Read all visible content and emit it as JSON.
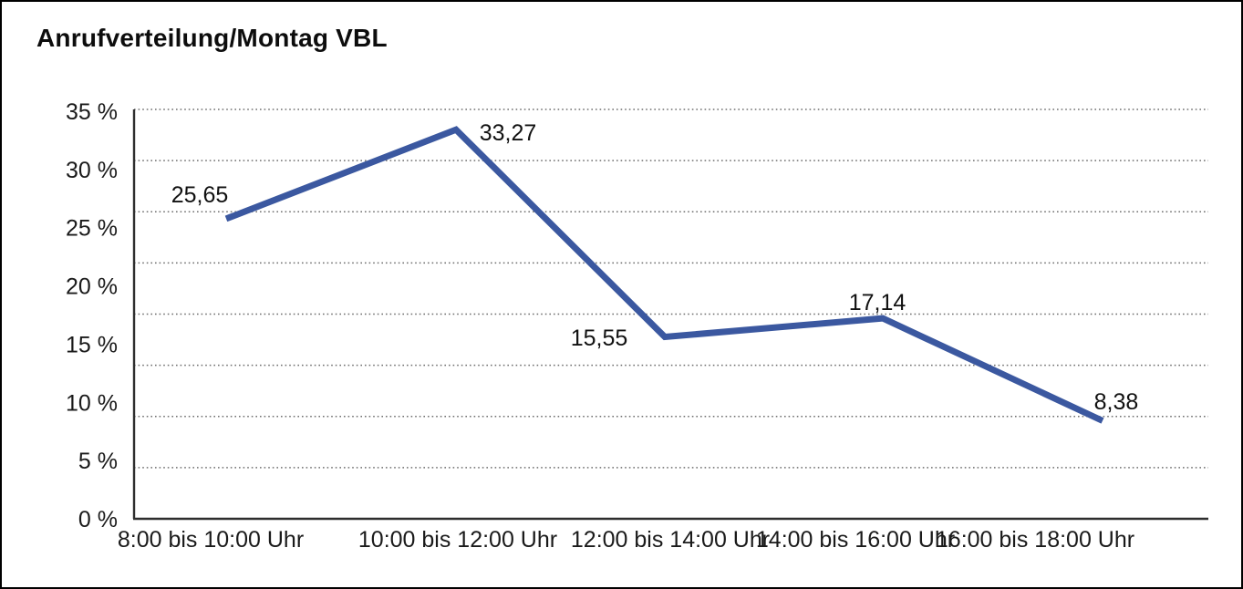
{
  "title": "Anrufverteilung/Montag VBL",
  "colors": {
    "line": "#3b58a0",
    "axis": "#2e2e2e",
    "grid": "#6e6e6e",
    "background": "#ffffff",
    "frame_border": "#000000",
    "text": "#1a1a1a"
  },
  "chart_data": {
    "type": "line",
    "title": "Anrufverteilung/Montag VBL",
    "categories": [
      "8:00 bis 10:00 Uhr",
      "10:00 bis 12:00 Uhr",
      "12:00 bis 14:00 Uhr",
      "14:00 bis 16:00 Uhr",
      "16:00 bis 18:00 Uhr"
    ],
    "values": [
      25.65,
      33.27,
      15.55,
      17.14,
      8.38
    ],
    "value_labels": [
      "25,65",
      "33,27",
      "15,55",
      "17,14",
      "8,38"
    ],
    "y_tick_labels": [
      "35 %",
      "30 %",
      "25 %",
      "20 %",
      "15 %",
      "10 %",
      "5 %",
      "0 %"
    ],
    "xlabel": "",
    "ylabel": "",
    "ylim": [
      0,
      35
    ],
    "grid": "horizontal-dotted",
    "legend": "none"
  }
}
